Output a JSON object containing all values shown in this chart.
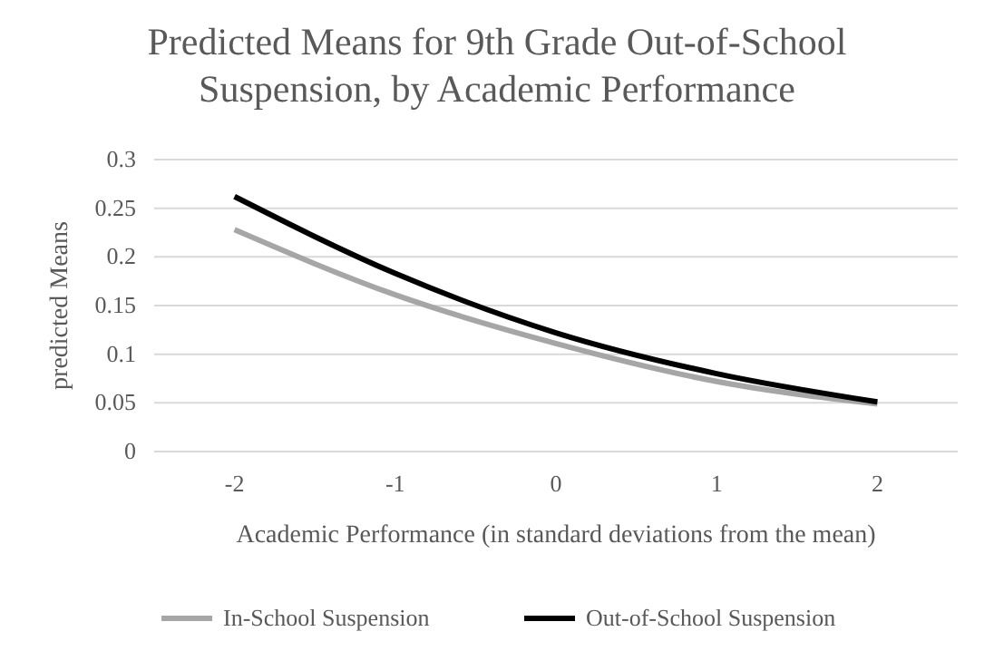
{
  "chart_data": {
    "type": "line",
    "title": "Predicted Means for 9th Grade Out-of-School Suspension, by Academic Performance",
    "xlabel": "Academic Performance (in standard deviations from the mean)",
    "ylabel": "predicted Means",
    "categories": [
      "-2",
      "-1",
      "0",
      "1",
      "2"
    ],
    "series": [
      {
        "name": "In-School Suspension",
        "color": "#a6a6a6",
        "values": [
          0.228,
          0.161,
          0.111,
          0.072,
          0.049
        ]
      },
      {
        "name": "Out-of-School Suspension",
        "color": "#000000",
        "values": [
          0.262,
          0.183,
          0.122,
          0.08,
          0.051
        ]
      }
    ],
    "ylim": [
      0,
      0.3
    ],
    "yticks": [
      0,
      0.05,
      0.1,
      0.15,
      0.2,
      0.25,
      0.3
    ],
    "grid": "y",
    "legend": "bottom",
    "marker": "none",
    "line_style": "solid"
  }
}
